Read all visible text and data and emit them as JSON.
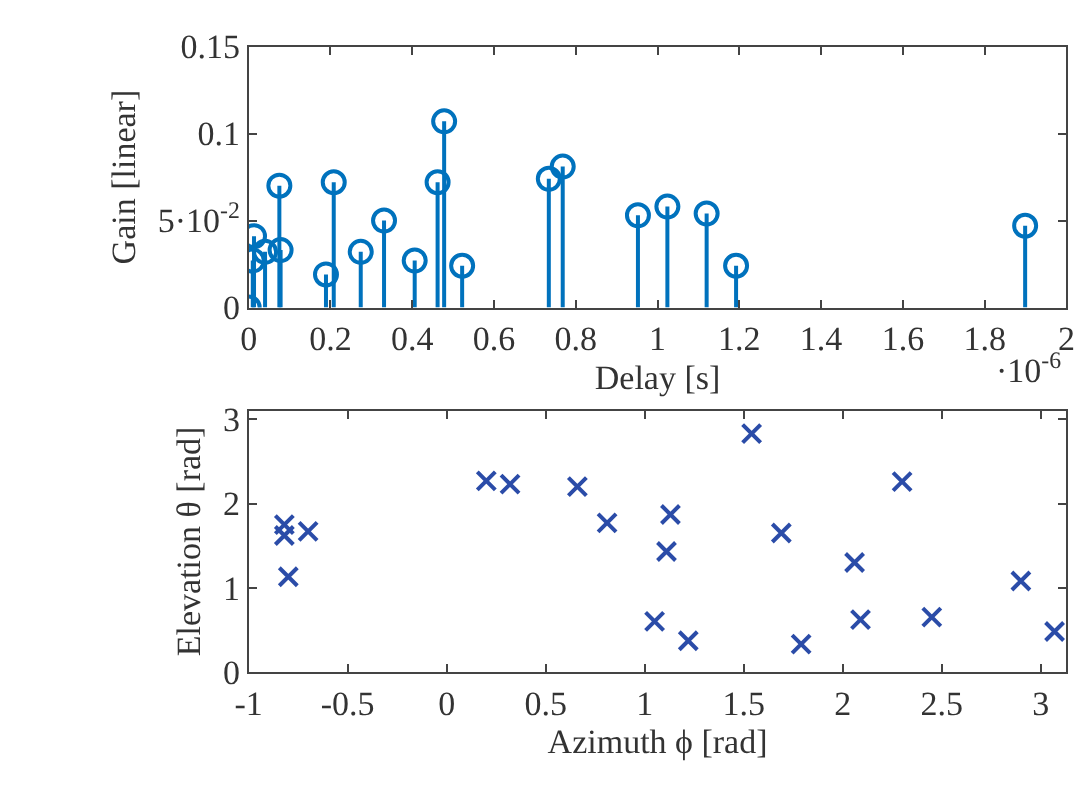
{
  "chart_data": [
    {
      "type": "lollipop",
      "xlabel": "Delay [s]",
      "ylabel": "Gain [linear]",
      "annotations": [
        "·10$^{-6}$"
      ],
      "series": [
        {
          "color": "#0072bd",
          "x": [
            0,
            0.01,
            0.013,
            0.04,
            0.075,
            0.078,
            0.189,
            0.208,
            0.274,
            0.331,
            0.406,
            0.462,
            0.478,
            0.522,
            0.734,
            0.768,
            0.952,
            1.024,
            1.12,
            1.192,
            1.899
          ],
          "values": [
            0,
            0.027,
            0.041,
            0.032,
            0.07,
            0.033,
            0.019,
            0.072,
            0.032,
            0.05,
            0.027,
            0.072,
            0.107,
            0.024,
            0.074,
            0.081,
            0.053,
            0.058,
            0.054,
            0.024,
            0.047
          ]
        }
      ],
      "xlim": [
        0,
        2
      ],
      "xticks": [
        0,
        0.2,
        0.4,
        0.6,
        0.8,
        1,
        1.2,
        1.4,
        1.6,
        1.8,
        2
      ],
      "ylim": [
        0,
        0.15
      ],
      "yticks": [
        0,
        {
          "value": 0.05,
          "label": "5·10$^{-2}$"
        },
        0.1,
        0.15
      ],
      "marker": "circle"
    },
    {
      "type": "scatter",
      "xlabel": "Azimuth ϕ [rad]",
      "ylabel": "Elevation θ [rad]",
      "series": [
        {
          "color": "#2b4ca8",
          "x": [
            -0.82,
            -0.82,
            -0.8,
            -0.7,
            0.2,
            0.32,
            0.66,
            0.81,
            1.05,
            1.11,
            1.13,
            1.22,
            1.54,
            1.69,
            1.79,
            2.06,
            2.09,
            2.3,
            2.45,
            2.9,
            3.07
          ],
          "values": [
            1.75,
            1.62,
            1.13,
            1.67,
            2.27,
            2.23,
            2.2,
            1.77,
            0.6,
            1.43,
            1.87,
            0.37,
            2.83,
            1.65,
            0.33,
            1.3,
            0.62,
            2.26,
            0.65,
            1.08,
            0.48
          ]
        }
      ],
      "xlim": [
        -1,
        3.13
      ],
      "xticks": [
        -1,
        -0.5,
        0,
        0.5,
        1,
        1.5,
        2,
        2.5,
        3
      ],
      "ylim": [
        0,
        3.1
      ],
      "yticks": [
        0,
        1,
        2,
        3
      ],
      "marker": "cross"
    }
  ]
}
